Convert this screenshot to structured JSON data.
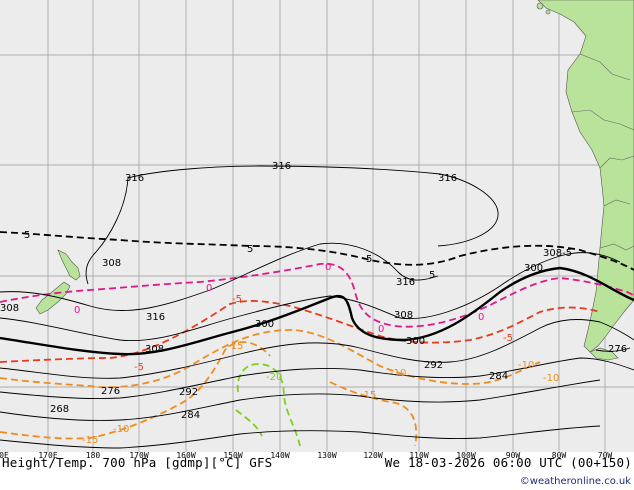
{
  "map": {
    "title": "Height/Temp. 700 hPa [gdmp][°C] GFS",
    "datetime": "We 18-03-2026 06:00 UTC (00+150)",
    "credit": "©weatheronline.co.uk",
    "colors": {
      "ocean": "#ececec",
      "land": "#b9e39a",
      "height_contour": "#000000",
      "zero_isotherm": "#e0188c",
      "warm_isotherm": "#e83a1e",
      "cool_isotherm": "#f08c1e",
      "cold_isotherm": "#7cd020",
      "grid": "#9a9a9a"
    },
    "lon_labels": [
      "0E",
      "170E",
      "180",
      "170W",
      "160W",
      "150W",
      "140W",
      "130W",
      "120W",
      "110W",
      "100W",
      "90W",
      "80W",
      "70W"
    ],
    "height_labels": [
      "316",
      "316",
      "316",
      "308",
      "308",
      "316",
      "316",
      "308",
      "308-5",
      "300",
      "300",
      "308",
      "300",
      "292",
      "284",
      "276",
      "292",
      "284",
      "268",
      "276"
    ],
    "temp_labels": [
      "5",
      "5",
      "5",
      "5",
      "0",
      "0",
      "0",
      "0",
      "0",
      "-5",
      "-5",
      "-5",
      "-10",
      "-10",
      "-10",
      "-15",
      "-15",
      "-15",
      "-20",
      "-10"
    ]
  }
}
